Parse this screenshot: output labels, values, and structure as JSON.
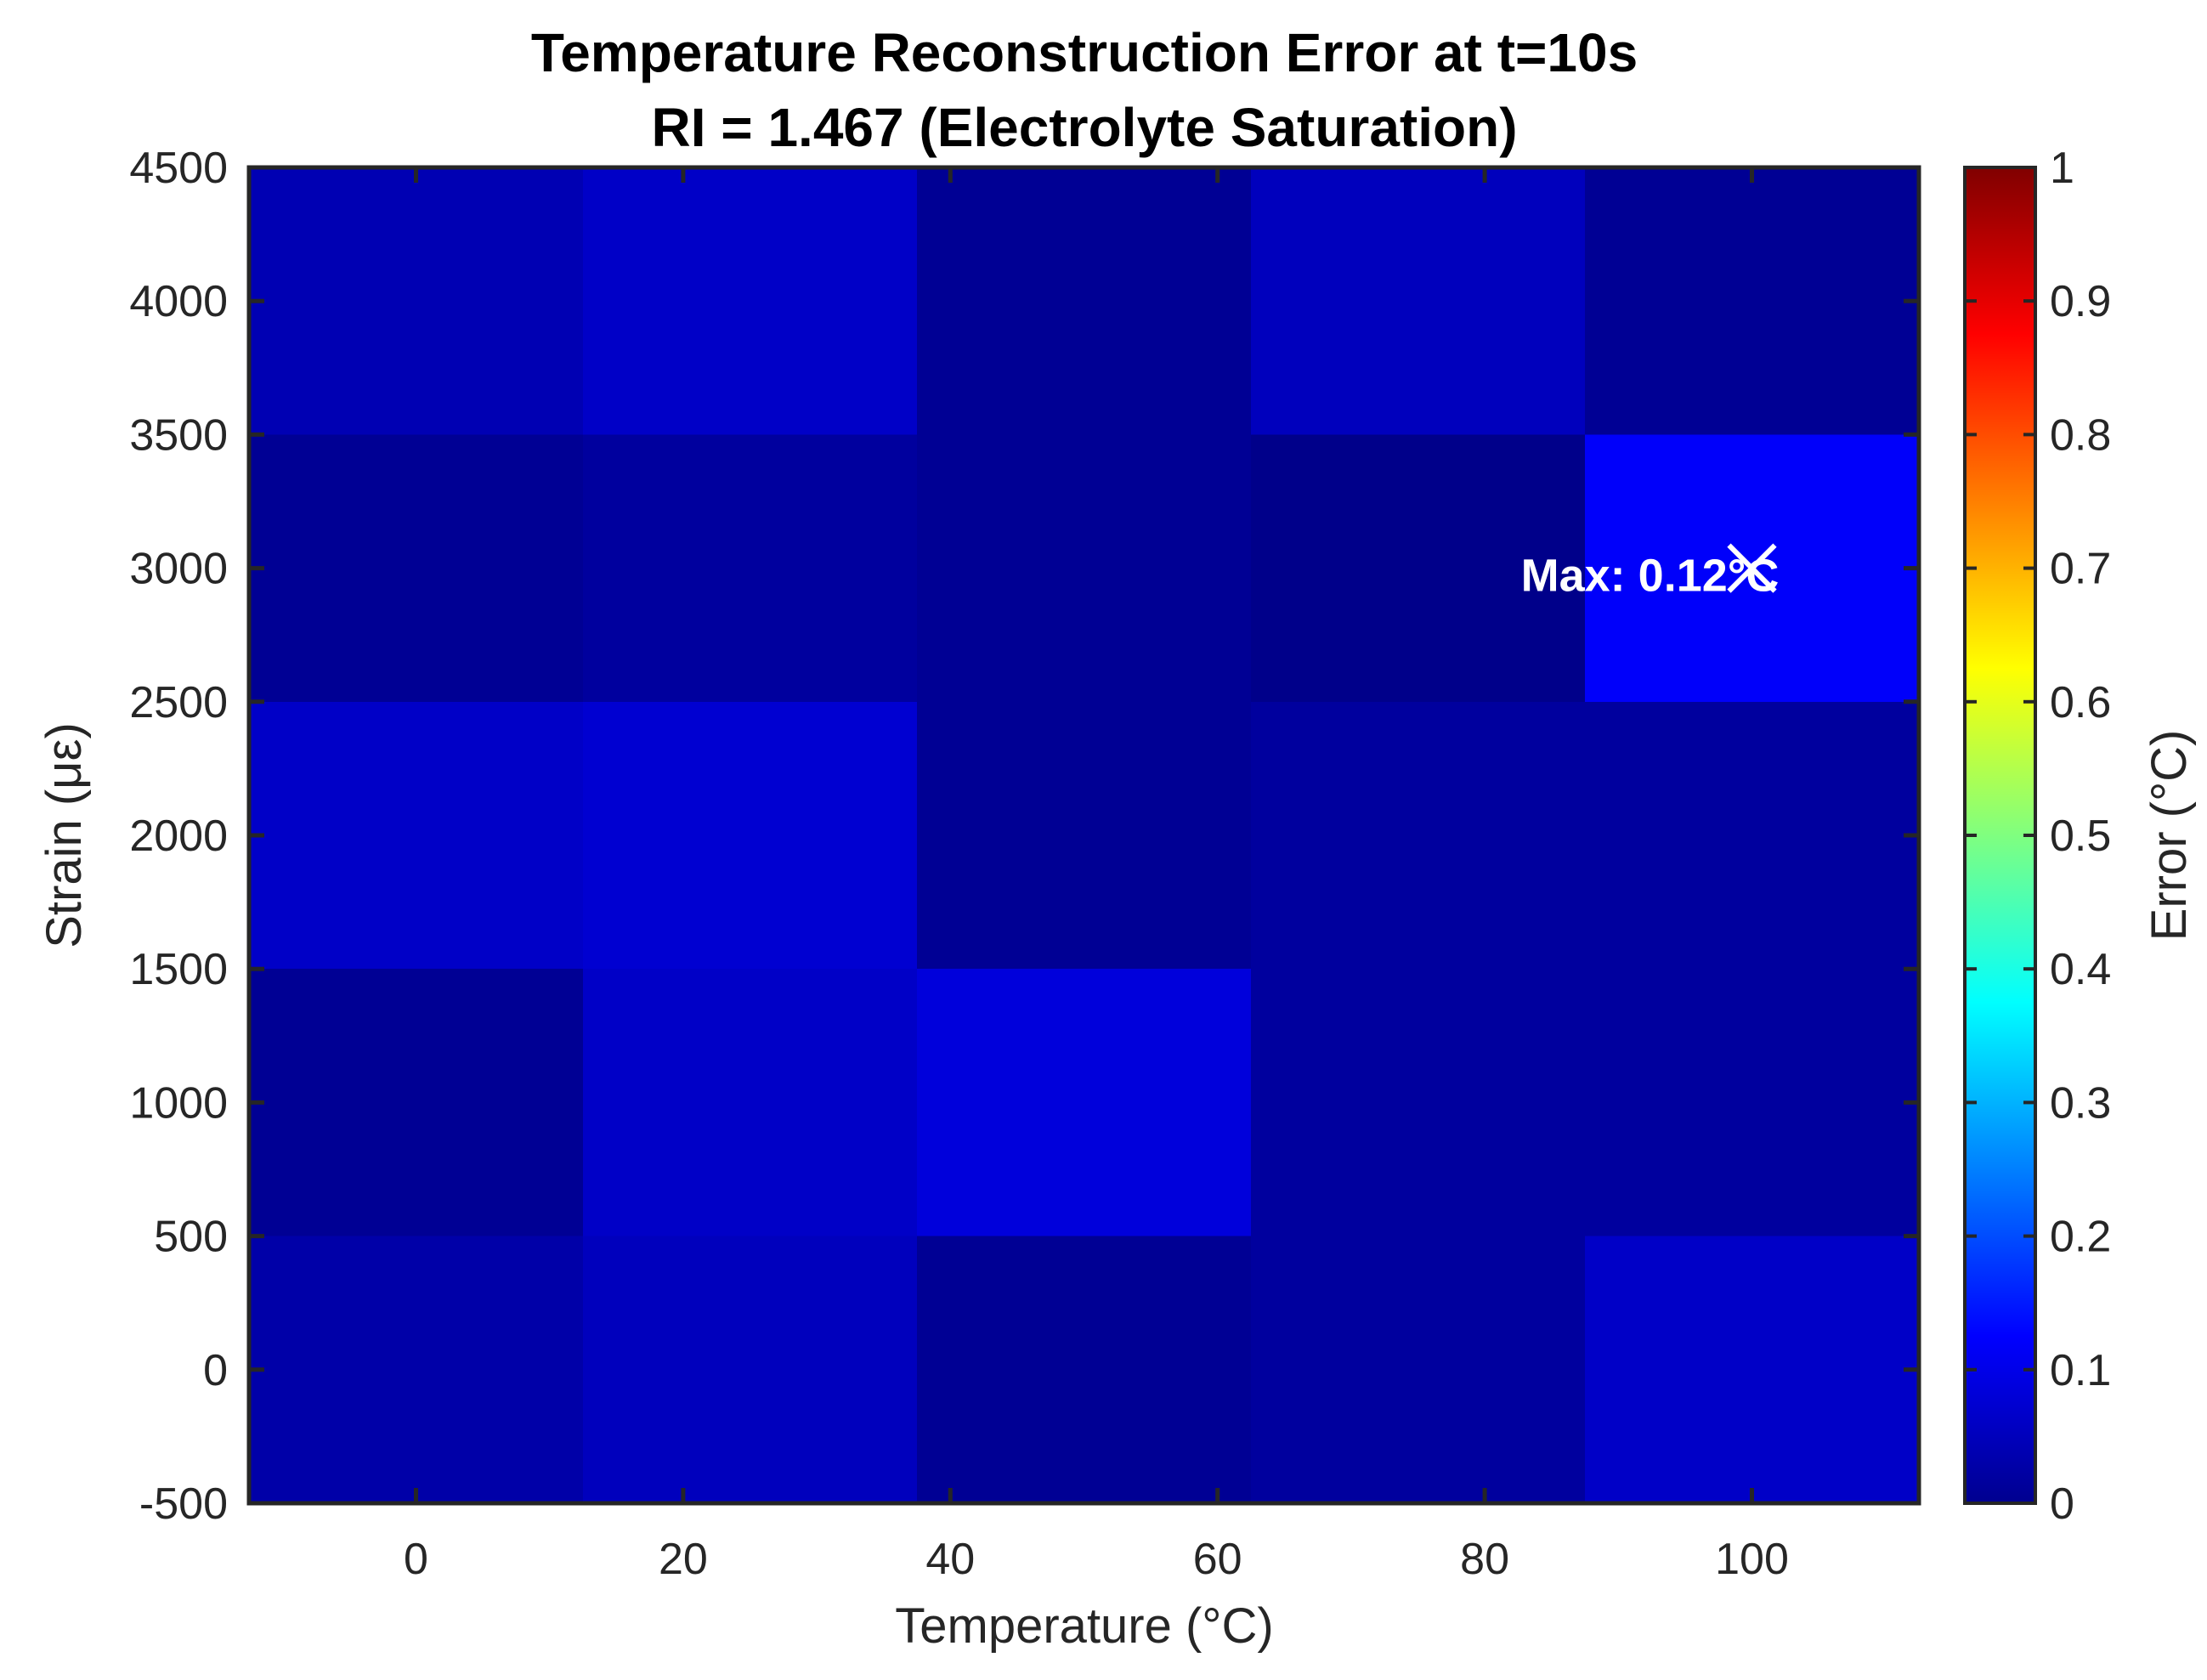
{
  "chart_data": {
    "type": "heatmap",
    "title": "Temperature Reconstruction Error at t=10s",
    "subtitle": "RI = 1.467 (Electrolyte Saturation)",
    "xlabel": "Temperature (°C)",
    "ylabel": "Strain (με)",
    "x": [
      0,
      25,
      50,
      75,
      100
    ],
    "y": [
      0,
      1000,
      2000,
      3000,
      4000
    ],
    "xlim": [
      -12.5,
      112.5
    ],
    "ylim": [
      -500,
      4500
    ],
    "xticks": [
      "0",
      "20",
      "40",
      "60",
      "80",
      "100"
    ],
    "xtick_values": [
      0,
      20,
      40,
      60,
      80,
      100
    ],
    "yticks": [
      "-500",
      "0",
      "500",
      "1000",
      "1500",
      "2000",
      "2500",
      "3000",
      "3500",
      "4000",
      "4500"
    ],
    "ytick_values": [
      -500,
      0,
      500,
      1000,
      1500,
      2000,
      2500,
      3000,
      3500,
      4000,
      4500
    ],
    "z": [
      [
        0.04,
        0.06,
        0.02,
        0.03,
        0.07
      ],
      [
        0.02,
        0.07,
        0.09,
        0.03,
        0.03
      ],
      [
        0.07,
        0.08,
        0.02,
        0.03,
        0.03
      ],
      [
        0.02,
        0.03,
        0.02,
        0.01,
        0.12
      ],
      [
        0.05,
        0.07,
        0.02,
        0.06,
        0.02
      ]
    ],
    "colormap": "jet",
    "clim": [
      0,
      1
    ],
    "colorbar": {
      "label": "Error (°C)",
      "ticks": [
        "0",
        "0.1",
        "0.2",
        "0.3",
        "0.4",
        "0.5",
        "0.6",
        "0.7",
        "0.8",
        "0.9",
        "1"
      ],
      "tick_values": [
        0,
        0.1,
        0.2,
        0.3,
        0.4,
        0.5,
        0.6,
        0.7,
        0.8,
        0.9,
        1
      ]
    },
    "annotation": {
      "text": "Max: 0.12°C",
      "x": 100,
      "y": 3000,
      "marker": "x",
      "color": "#ffffff"
    },
    "grid": false
  }
}
